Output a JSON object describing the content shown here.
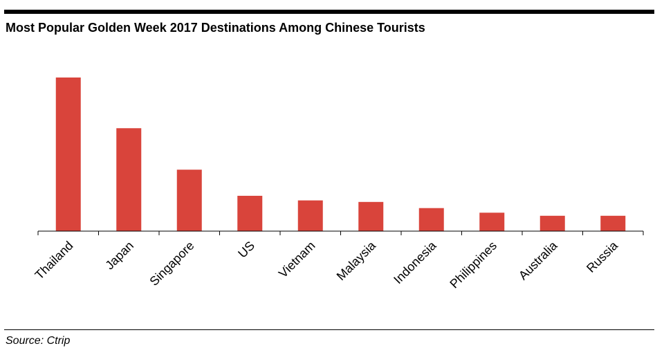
{
  "header": {
    "title": "Most Popular Golden Week 2017 Destinations Among Chinese Tourists"
  },
  "footer": {
    "source": "Source: Ctrip"
  },
  "colors": {
    "bar": "#d9443b",
    "axis": "#000000"
  },
  "chart_data": {
    "type": "bar",
    "title": "Most Popular Golden Week 2017 Destinations Among Chinese Tourists",
    "xlabel": "",
    "ylabel": "",
    "categories": [
      "Thailand",
      "Japan",
      "Singapore",
      "US",
      "Vietnam",
      "Malaysia",
      "Indonesia",
      "Philippines",
      "Australia",
      "Russia"
    ],
    "values": [
      100,
      67,
      40,
      23,
      20,
      19,
      15,
      12,
      10,
      10
    ],
    "ylim": [
      0,
      100
    ],
    "grid": false,
    "legend": "none",
    "value_axis_labels": false
  }
}
